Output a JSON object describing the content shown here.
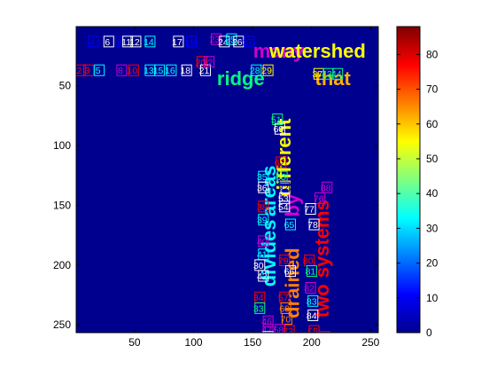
{
  "chart_data": {
    "type": "heatmap",
    "background_color": "#00008f",
    "x_range": [
      0.5,
      256.5
    ],
    "y_range": [
      0.5,
      256.5
    ],
    "y_reversed": true,
    "x_ticks": [
      50,
      100,
      150,
      200,
      250
    ],
    "y_ticks": [
      50,
      100,
      150,
      200,
      250
    ],
    "colorbar": {
      "range": [
        0,
        88
      ],
      "ticks": [
        0,
        10,
        20,
        30,
        40,
        50,
        60,
        70,
        80
      ],
      "colormap": "jet"
    },
    "word_labels": [
      {
        "text": "many",
        "x": 172,
        "y": 22,
        "horizontal": true,
        "size": 22,
        "color": "#d000d0"
      },
      {
        "text": "watershed",
        "x": 205,
        "y": 22,
        "horizontal": true,
        "size": 22,
        "color": "#ffff00"
      },
      {
        "text": "ridge",
        "x": 140,
        "y": 45,
        "horizontal": true,
        "size": 22,
        "color": "#00ff80"
      },
      {
        "text": "that",
        "x": 218,
        "y": 45,
        "horizontal": true,
        "size": 22,
        "color": "#ffb000"
      },
      {
        "text": "different",
        "x": 178,
        "y": 110,
        "horizontal": false,
        "size": 22,
        "color": "#ffff00"
      },
      {
        "text": "areas",
        "x": 165,
        "y": 138,
        "horizontal": false,
        "size": 22,
        "color": "#00ffff"
      },
      {
        "text": "drained",
        "x": 185,
        "y": 215,
        "horizontal": false,
        "size": 22,
        "color": "#ff8000"
      },
      {
        "text": "by",
        "x": 185,
        "y": 150,
        "horizontal": false,
        "size": 22,
        "color": "#d000d0"
      },
      {
        "text": "systems",
        "x": 210,
        "y": 178,
        "horizontal": false,
        "size": 22,
        "color": "#ff0000"
      },
      {
        "text": "divides",
        "x": 165,
        "y": 190,
        "horizontal": false,
        "size": 22,
        "color": "#00ffff"
      },
      {
        "text": "two",
        "x": 210,
        "y": 230,
        "horizontal": false,
        "size": 22,
        "color": "#ff0000"
      }
    ],
    "markers": [
      {
        "n": 4,
        "x": 14,
        "y": 13,
        "color": "#0000ff"
      },
      {
        "n": 6,
        "x": 27,
        "y": 13,
        "color": "#ffffff"
      },
      {
        "n": 9,
        "x": 37,
        "y": 13,
        "color": "#0000ff"
      },
      {
        "n": 11,
        "x": 43,
        "y": 13,
        "color": "#ffffff"
      },
      {
        "n": 12,
        "x": 50,
        "y": 13,
        "color": "#ffffff"
      },
      {
        "n": 14,
        "x": 62,
        "y": 13,
        "color": "#00ffff"
      },
      {
        "n": 17,
        "x": 86,
        "y": 13,
        "color": "#ffffff"
      },
      {
        "n": 19,
        "x": 97,
        "y": 13,
        "color": "#0000ff"
      },
      {
        "n": 23,
        "x": 118,
        "y": 11,
        "color": "#d000d0"
      },
      {
        "n": 24,
        "x": 125,
        "y": 13,
        "color": "#ffffff"
      },
      {
        "n": 25,
        "x": 131,
        "y": 11,
        "color": "#00ffff"
      },
      {
        "n": 26,
        "x": 137,
        "y": 13,
        "color": "#ffffff"
      },
      {
        "n": 27,
        "x": 146,
        "y": 13,
        "color": "#0000ff"
      },
      {
        "n": 2,
        "x": 3,
        "y": 37,
        "color": "#ff0000"
      },
      {
        "n": 3,
        "x": 10,
        "y": 37,
        "color": "#ff0000"
      },
      {
        "n": 5,
        "x": 19,
        "y": 37,
        "color": "#00ffff"
      },
      {
        "n": 8,
        "x": 38,
        "y": 37,
        "color": "#d000d0"
      },
      {
        "n": 10,
        "x": 48,
        "y": 37,
        "color": "#ff0000"
      },
      {
        "n": 13,
        "x": 62,
        "y": 37,
        "color": "#00ffff"
      },
      {
        "n": 15,
        "x": 70,
        "y": 37,
        "color": "#00ffff"
      },
      {
        "n": 16,
        "x": 80,
        "y": 37,
        "color": "#00ffff"
      },
      {
        "n": 18,
        "x": 93,
        "y": 37,
        "color": "#ffffff"
      },
      {
        "n": 20,
        "x": 106,
        "y": 30,
        "color": "#ff0000"
      },
      {
        "n": 21,
        "x": 109,
        "y": 37,
        "color": "#ffffff"
      },
      {
        "n": 22,
        "x": 112,
        "y": 30,
        "color": "#d000d0"
      },
      {
        "n": 28,
        "x": 152,
        "y": 37,
        "color": "#00ffff"
      },
      {
        "n": 29,
        "x": 162,
        "y": 37,
        "color": "#ffff00"
      },
      {
        "n": 37,
        "x": 205,
        "y": 40,
        "color": "#ffff00"
      },
      {
        "n": 43,
        "x": 213,
        "y": 40,
        "color": "#00ff80"
      },
      {
        "n": 44,
        "x": 221,
        "y": 40,
        "color": "#00ff80"
      },
      {
        "n": 51,
        "x": 170,
        "y": 78,
        "color": "#00ff80"
      },
      {
        "n": 60,
        "x": 172,
        "y": 86,
        "color": "#ffffff"
      },
      {
        "n": 62,
        "x": 173,
        "y": 114,
        "color": "#ff0000"
      },
      {
        "n": 35,
        "x": 158,
        "y": 126,
        "color": "#00ffff"
      },
      {
        "n": 63,
        "x": 174,
        "y": 126,
        "color": "#00ff80"
      },
      {
        "n": 36,
        "x": 158,
        "y": 135,
        "color": "#ffffff"
      },
      {
        "n": 32,
        "x": 176,
        "y": 135,
        "color": "#0000ff"
      },
      {
        "n": 53,
        "x": 176,
        "y": 144,
        "color": "#ffffff"
      },
      {
        "n": 88,
        "x": 212,
        "y": 135,
        "color": "#d000d0"
      },
      {
        "n": 76,
        "x": 206,
        "y": 144,
        "color": "#d000d0"
      },
      {
        "n": 38,
        "x": 158,
        "y": 151,
        "color": "#ff0000"
      },
      {
        "n": 54,
        "x": 176,
        "y": 151,
        "color": "#ffffff"
      },
      {
        "n": 77,
        "x": 198,
        "y": 153,
        "color": "#ffffff"
      },
      {
        "n": 39,
        "x": 158,
        "y": 162,
        "color": "#00ffff"
      },
      {
        "n": 65,
        "x": 181,
        "y": 166,
        "color": "#00ffff"
      },
      {
        "n": 78,
        "x": 201,
        "y": 166,
        "color": "#ffffff"
      },
      {
        "n": 40,
        "x": 158,
        "y": 180,
        "color": "#d000d0"
      },
      {
        "n": 41,
        "x": 158,
        "y": 191,
        "color": "#00ffff"
      },
      {
        "n": 30,
        "x": 155,
        "y": 200,
        "color": "#ffffff"
      },
      {
        "n": 79,
        "x": 176,
        "y": 196,
        "color": "#ff0000"
      },
      {
        "n": 80,
        "x": 197,
        "y": 196,
        "color": "#ff0000"
      },
      {
        "n": 66,
        "x": 181,
        "y": 205,
        "color": "#ffffff"
      },
      {
        "n": 81,
        "x": 199,
        "y": 205,
        "color": "#00ff80"
      },
      {
        "n": 42,
        "x": 158,
        "y": 209,
        "color": "#ffffff"
      },
      {
        "n": 82,
        "x": 198,
        "y": 219,
        "color": "#d000d0"
      },
      {
        "n": 34,
        "x": 155,
        "y": 227,
        "color": "#ff0000"
      },
      {
        "n": 57,
        "x": 176,
        "y": 227,
        "color": "#ff0000"
      },
      {
        "n": 83,
        "x": 200,
        "y": 230,
        "color": "#00ffff"
      },
      {
        "n": 33,
        "x": 155,
        "y": 236,
        "color": "#00ff80"
      },
      {
        "n": 69,
        "x": 177,
        "y": 236,
        "color": "#ff8000"
      },
      {
        "n": 84,
        "x": 200,
        "y": 242,
        "color": "#ffffff"
      },
      {
        "n": 46,
        "x": 162,
        "y": 247,
        "color": "#d000d0"
      },
      {
        "n": 70,
        "x": 178,
        "y": 245,
        "color": "#ff8000"
      },
      {
        "n": 47,
        "x": 162,
        "y": 254,
        "color": "#d000d0"
      },
      {
        "n": 48,
        "x": 162,
        "y": 260,
        "color": "#ffffff"
      },
      {
        "n": 58,
        "x": 172,
        "y": 254,
        "color": "#d000d0"
      },
      {
        "n": 73,
        "x": 180,
        "y": 255,
        "color": "#ff0000"
      },
      {
        "n": 85,
        "x": 201,
        "y": 255,
        "color": "#ff0000"
      },
      {
        "n": 86,
        "x": 210,
        "y": 260,
        "color": "#ff0000"
      }
    ]
  }
}
